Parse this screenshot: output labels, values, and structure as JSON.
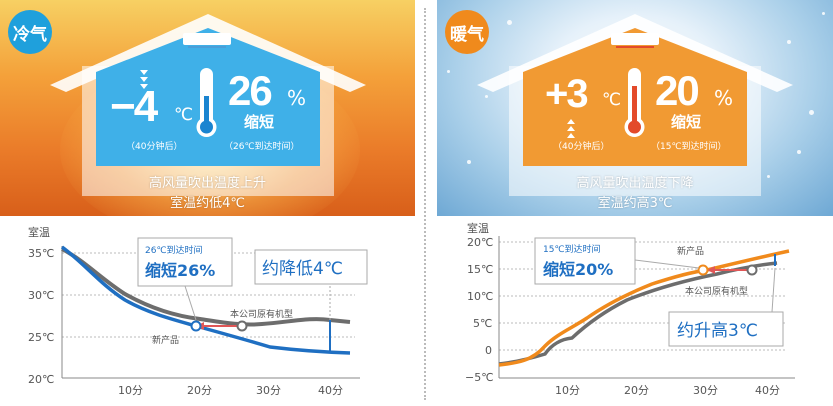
{
  "cool": {
    "badge": "冷气",
    "temp_sign_value": "−4",
    "temp_unit": "℃",
    "time_note": "（40分钟后）",
    "percent": "26",
    "percent_unit": "%",
    "shorten": "缩短",
    "percent_note": "（26℃到达时间）",
    "caption_line1": "高风量吹出温度上升",
    "caption_line2": "室温约低4℃",
    "callout_title": "26℃到达时间",
    "callout_value": "缩短26%",
    "result_label": "约降低4℃",
    "label_existing": "本公司原有机型",
    "label_new": "新产品",
    "ylabel": "室温",
    "yticks": [
      "35℃",
      "30℃",
      "25℃",
      "20℃"
    ],
    "xticks": [
      "10分",
      "20分",
      "30分",
      "40分"
    ],
    "colors": {
      "new": "#1f6fc2",
      "existing": "#6d6d6d",
      "accent": "#1f6fc2"
    }
  },
  "warm": {
    "badge": "暖气",
    "temp_sign_value": "+3",
    "temp_unit": "℃",
    "time_note": "（40分钟后）",
    "percent": "20",
    "percent_unit": "%",
    "shorten": "缩短",
    "percent_note": "（15℃到达时间）",
    "caption_line1": "高风量吹出温度下降",
    "caption_line2": "室温约高3℃",
    "callout_title": "15℃到达时间",
    "callout_value": "缩短20%",
    "result_label": "约升高3℃",
    "label_existing": "本公司原有机型",
    "label_new": "新产品",
    "ylabel": "室温",
    "yticks": [
      "20℃",
      "15℃",
      "10℃",
      "5℃",
      "0",
      "−5℃"
    ],
    "xticks": [
      "10分",
      "20分",
      "30分",
      "40分"
    ],
    "colors": {
      "new": "#f08a1c",
      "existing": "#6d6d6d",
      "accent": "#1f6fc2"
    }
  }
}
